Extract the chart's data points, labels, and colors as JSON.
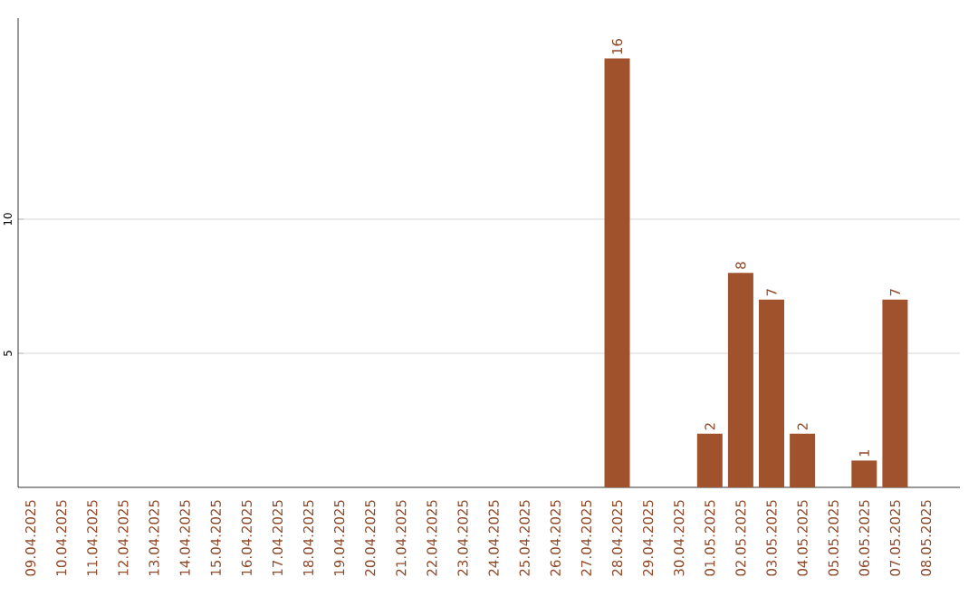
{
  "chart_data": {
    "type": "bar",
    "categories": [
      "09.04.2025",
      "10.04.2025",
      "11.04.2025",
      "12.04.2025",
      "13.04.2025",
      "14.04.2025",
      "15.04.2025",
      "16.04.2025",
      "17.04.2025",
      "18.04.2025",
      "19.04.2025",
      "20.04.2025",
      "21.04.2025",
      "22.04.2025",
      "23.04.2025",
      "24.04.2025",
      "25.04.2025",
      "26.04.2025",
      "27.04.2025",
      "28.04.2025",
      "29.04.2025",
      "30.04.2025",
      "01.05.2025",
      "02.05.2025",
      "03.05.2025",
      "04.05.2025",
      "05.05.2025",
      "06.05.2025",
      "07.05.2025",
      "08.05.2025"
    ],
    "values": [
      0,
      0,
      0,
      0,
      0,
      0,
      0,
      0,
      0,
      0,
      0,
      0,
      0,
      0,
      0,
      0,
      0,
      0,
      0,
      16,
      0,
      0,
      2,
      8,
      7,
      2,
      0,
      1,
      7,
      0
    ],
    "value_labels": [
      null,
      null,
      null,
      null,
      null,
      null,
      null,
      null,
      null,
      null,
      null,
      null,
      null,
      null,
      null,
      null,
      null,
      null,
      null,
      "16",
      null,
      null,
      "2",
      "8",
      "7",
      "2",
      null,
      "1",
      "7",
      null
    ],
    "color": "#a0522d",
    "ylim": [
      0,
      17.5
    ],
    "yticks": [
      5,
      10
    ],
    "grid": "y"
  }
}
